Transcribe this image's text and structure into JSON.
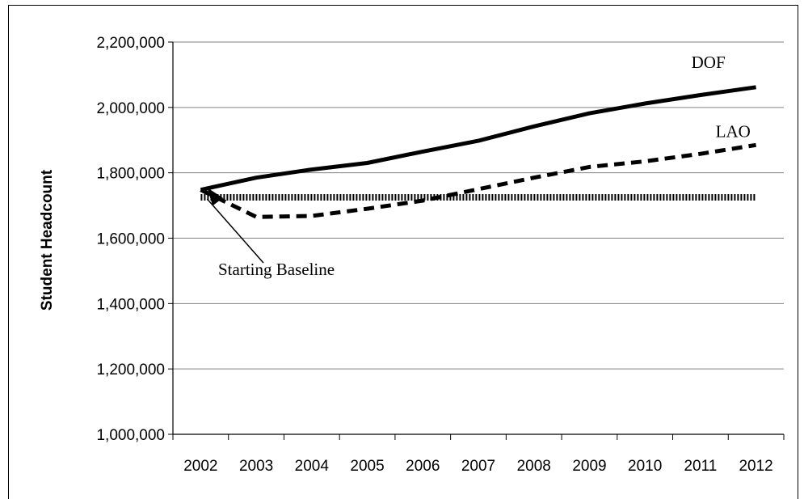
{
  "chart_data": {
    "type": "line",
    "title": "",
    "xlabel": "",
    "ylabel": "Student Headcount",
    "x": [
      2002,
      2003,
      2004,
      2005,
      2006,
      2007,
      2008,
      2009,
      2010,
      2011,
      2012
    ],
    "x_tick_labels": [
      "2002",
      "2003",
      "2004",
      "2005",
      "2006",
      "2007",
      "2008",
      "2009",
      "2010",
      "2011",
      "2012"
    ],
    "ylim": [
      1000000,
      2200000
    ],
    "y_tick_labels": [
      "1,000,000",
      "1,200,000",
      "1,400,000",
      "1,600,000",
      "1,800,000",
      "2,000,000",
      "2,200,000"
    ],
    "grid": true,
    "series": [
      {
        "name": "DOF",
        "style": "solid",
        "values": [
          1748000,
          1785000,
          1810000,
          1830000,
          1865000,
          1898000,
          1942000,
          1982000,
          2012000,
          2038000,
          2062000
        ]
      },
      {
        "name": "LAO",
        "style": "dashed",
        "values": [
          1748000,
          1665000,
          1668000,
          1690000,
          1715000,
          1750000,
          1785000,
          1818000,
          1835000,
          1858000,
          1885000
        ]
      },
      {
        "name": "",
        "style": "dotted",
        "values": [
          1725000,
          1725000,
          1725000,
          1725000,
          1725000,
          1725000,
          1725000,
          1725000,
          1725000,
          1725000,
          1725000
        ]
      }
    ],
    "annotations": [
      {
        "text": "Starting Baseline",
        "points_to": {
          "x": 2002,
          "y": 1735000
        }
      }
    ],
    "colors": {
      "lines": "#000000",
      "grid": "#808080"
    }
  }
}
